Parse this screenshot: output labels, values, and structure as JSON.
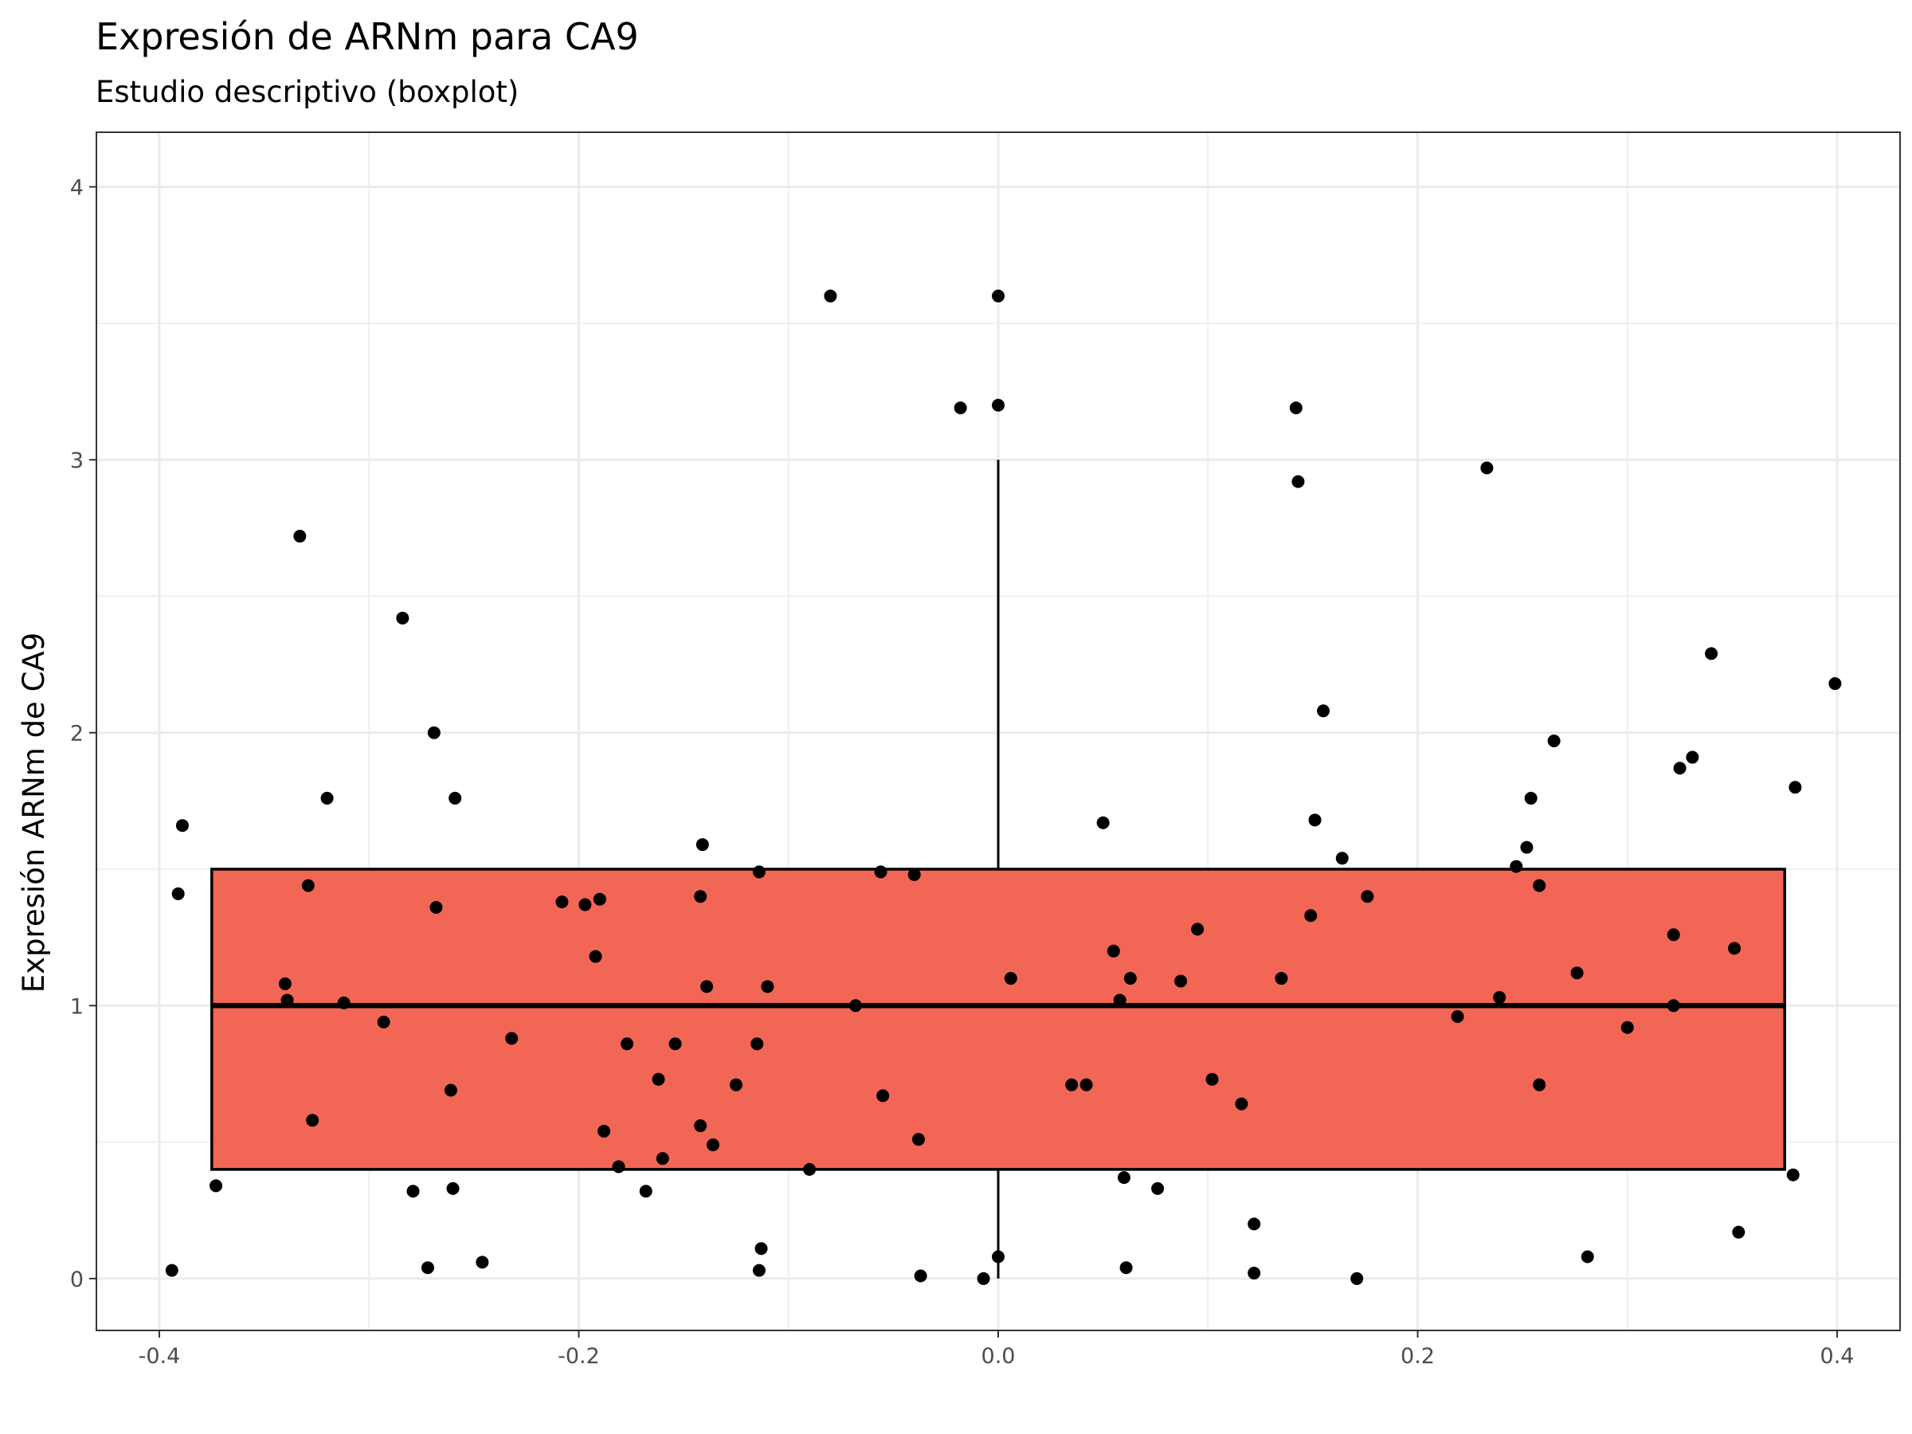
{
  "chart_data": {
    "type": "boxplot",
    "title": "Expresión de ARNm para CA9",
    "subtitle": "Estudio descriptivo (boxplot)",
    "xlabel": "",
    "ylabel": "Expresión ARNm de CA9",
    "xlim": [
      -0.43,
      0.43
    ],
    "ylim": [
      -0.19,
      4.2
    ],
    "x_ticks": [
      "-0.4",
      "-0.2",
      "0.0",
      "0.2",
      "0.4"
    ],
    "x_tick_values": [
      -0.4,
      -0.2,
      0.0,
      0.2,
      0.4
    ],
    "y_ticks": [
      "0",
      "1",
      "2",
      "3",
      "4"
    ],
    "y_tick_values": [
      0,
      1,
      2,
      3,
      4
    ],
    "grid": true,
    "colors": {
      "box_fill": "#f26655",
      "box_outline": "#000000",
      "points": "#000000",
      "grid": "#ebebeb",
      "panel_border": "#333333"
    },
    "box": {
      "q1": 0.4,
      "median": 1.0,
      "q3": 1.5,
      "whisker_low": 0.0,
      "whisker_high": 3.0,
      "x_center": 0.0,
      "x_half_width": 0.375
    },
    "points": [
      {
        "x": -0.08,
        "y": 3.6
      },
      {
        "x": 0.0,
        "y": 3.6
      },
      {
        "x": -0.018,
        "y": 3.19
      },
      {
        "x": 0.0,
        "y": 3.2
      },
      {
        "x": 0.142,
        "y": 3.19
      },
      {
        "x": 0.143,
        "y": 2.92
      },
      {
        "x": 0.233,
        "y": 2.97
      },
      {
        "x": -0.333,
        "y": 2.72
      },
      {
        "x": -0.284,
        "y": 2.42
      },
      {
        "x": -0.269,
        "y": 2.0
      },
      {
        "x": -0.259,
        "y": 1.76
      },
      {
        "x": -0.32,
        "y": 1.76
      },
      {
        "x": -0.389,
        "y": 1.66
      },
      {
        "x": -0.391,
        "y": 1.41
      },
      {
        "x": -0.329,
        "y": 1.44
      },
      {
        "x": -0.268,
        "y": 1.36
      },
      {
        "x": 0.155,
        "y": 2.08
      },
      {
        "x": 0.34,
        "y": 2.29
      },
      {
        "x": 0.399,
        "y": 2.18
      },
      {
        "x": 0.265,
        "y": 1.97
      },
      {
        "x": 0.331,
        "y": 1.91
      },
      {
        "x": 0.325,
        "y": 1.87
      },
      {
        "x": 0.38,
        "y": 1.8
      },
      {
        "x": 0.254,
        "y": 1.76
      },
      {
        "x": 0.151,
        "y": 1.68
      },
      {
        "x": 0.05,
        "y": 1.67
      },
      {
        "x": -0.141,
        "y": 1.59
      },
      {
        "x": 0.252,
        "y": 1.58
      },
      {
        "x": 0.164,
        "y": 1.54
      },
      {
        "x": 0.247,
        "y": 1.51
      },
      {
        "x": -0.114,
        "y": 1.49
      },
      {
        "x": -0.056,
        "y": 1.49
      },
      {
        "x": -0.04,
        "y": 1.48
      },
      {
        "x": 0.258,
        "y": 1.44
      },
      {
        "x": -0.142,
        "y": 1.4
      },
      {
        "x": 0.176,
        "y": 1.4
      },
      {
        "x": -0.208,
        "y": 1.38
      },
      {
        "x": -0.19,
        "y": 1.39
      },
      {
        "x": -0.197,
        "y": 1.37
      },
      {
        "x": 0.149,
        "y": 1.33
      },
      {
        "x": 0.095,
        "y": 1.28
      },
      {
        "x": 0.322,
        "y": 1.26
      },
      {
        "x": 0.055,
        "y": 1.2
      },
      {
        "x": 0.351,
        "y": 1.21
      },
      {
        "x": -0.192,
        "y": 1.18
      },
      {
        "x": 0.276,
        "y": 1.12
      },
      {
        "x": 0.006,
        "y": 1.1
      },
      {
        "x": 0.063,
        "y": 1.1
      },
      {
        "x": 0.087,
        "y": 1.09
      },
      {
        "x": 0.135,
        "y": 1.1
      },
      {
        "x": -0.34,
        "y": 1.08
      },
      {
        "x": -0.139,
        "y": 1.07
      },
      {
        "x": -0.11,
        "y": 1.07
      },
      {
        "x": -0.339,
        "y": 1.02
      },
      {
        "x": -0.312,
        "y": 1.01
      },
      {
        "x": 0.058,
        "y": 1.02
      },
      {
        "x": 0.239,
        "y": 1.03
      },
      {
        "x": -0.068,
        "y": 1.0
      },
      {
        "x": 0.322,
        "y": 1.0
      },
      {
        "x": 0.219,
        "y": 0.96
      },
      {
        "x": -0.293,
        "y": 0.94
      },
      {
        "x": 0.3,
        "y": 0.92
      },
      {
        "x": -0.232,
        "y": 0.88
      },
      {
        "x": -0.177,
        "y": 0.86
      },
      {
        "x": -0.154,
        "y": 0.86
      },
      {
        "x": -0.115,
        "y": 0.86
      },
      {
        "x": -0.162,
        "y": 0.73
      },
      {
        "x": 0.102,
        "y": 0.73
      },
      {
        "x": -0.125,
        "y": 0.71
      },
      {
        "x": 0.035,
        "y": 0.71
      },
      {
        "x": 0.042,
        "y": 0.71
      },
      {
        "x": 0.258,
        "y": 0.71
      },
      {
        "x": -0.261,
        "y": 0.69
      },
      {
        "x": -0.055,
        "y": 0.67
      },
      {
        "x": 0.116,
        "y": 0.64
      },
      {
        "x": -0.327,
        "y": 0.58
      },
      {
        "x": -0.142,
        "y": 0.56
      },
      {
        "x": -0.188,
        "y": 0.54
      },
      {
        "x": -0.038,
        "y": 0.51
      },
      {
        "x": -0.136,
        "y": 0.49
      },
      {
        "x": -0.16,
        "y": 0.44
      },
      {
        "x": -0.181,
        "y": 0.41
      },
      {
        "x": -0.09,
        "y": 0.4
      },
      {
        "x": 0.379,
        "y": 0.38
      },
      {
        "x": 0.06,
        "y": 0.37
      },
      {
        "x": -0.373,
        "y": 0.34
      },
      {
        "x": -0.26,
        "y": 0.33
      },
      {
        "x": -0.168,
        "y": 0.32
      },
      {
        "x": -0.279,
        "y": 0.32
      },
      {
        "x": 0.076,
        "y": 0.33
      },
      {
        "x": 0.122,
        "y": 0.2
      },
      {
        "x": 0.353,
        "y": 0.17
      },
      {
        "x": -0.113,
        "y": 0.11
      },
      {
        "x": 0.0,
        "y": 0.08
      },
      {
        "x": 0.281,
        "y": 0.08
      },
      {
        "x": -0.246,
        "y": 0.06
      },
      {
        "x": -0.272,
        "y": 0.04
      },
      {
        "x": 0.061,
        "y": 0.04
      },
      {
        "x": -0.394,
        "y": 0.03
      },
      {
        "x": -0.114,
        "y": 0.03
      },
      {
        "x": 0.122,
        "y": 0.02
      },
      {
        "x": -0.037,
        "y": 0.01
      },
      {
        "x": -0.007,
        "y": 0.0
      },
      {
        "x": 0.171,
        "y": 0.0
      }
    ]
  }
}
